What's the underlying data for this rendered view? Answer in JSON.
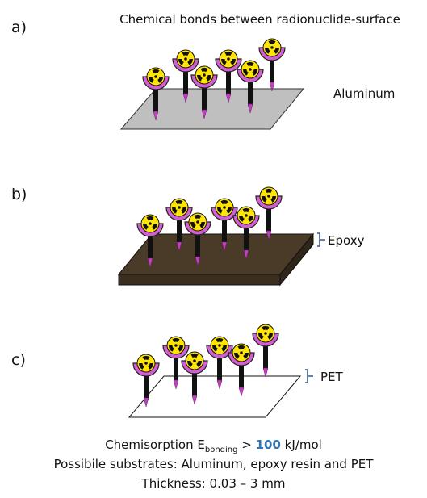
{
  "panels": [
    {
      "letter": "a)",
      "title": "Chemical bonds between radionuclide-surface",
      "substrate": "Aluminum"
    },
    {
      "letter": "b)",
      "substrate": "Epoxy"
    },
    {
      "letter": "c)",
      "substrate": "PET"
    }
  ],
  "caption": {
    "line1_prefix": "Chemisorption E",
    "line1_sub": "bonding",
    "line1_gt": " > ",
    "line1_value": "100",
    "line1_unit": " kJ/mol",
    "line2": "Possibile substrates: Aluminum, epoxy resin and PET",
    "line3": "Thickness: 0.03 – 3 mm"
  },
  "colors": {
    "aluminum": "#bfbfbf",
    "epoxy": "#4a3b28",
    "cup": "#d25fd2",
    "radiation_yellow": "#ffe500",
    "stem": "#111111",
    "tip": "#c040c0",
    "accent_value": "#2e75b6"
  }
}
